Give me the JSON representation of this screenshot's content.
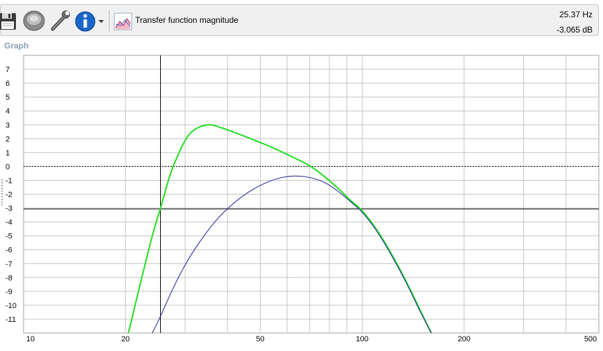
{
  "toolbar": {
    "title": "Transfer function magnitude",
    "buttons": [
      {
        "name": "save-button",
        "icon": "floppy-disk-icon"
      },
      {
        "name": "speaker-button",
        "icon": "speaker-icon"
      },
      {
        "name": "settings-button",
        "icon": "wrench-icon"
      },
      {
        "name": "info-button",
        "icon": "info-icon"
      },
      {
        "name": "info-dropdown-button",
        "icon": "chevron-down-icon"
      },
      {
        "name": "chart-button",
        "icon": "chart-icon"
      }
    ]
  },
  "readout": {
    "frequency": "25.37 Hz",
    "level": "-3.065 dB"
  },
  "panel": {
    "label": "Graph"
  },
  "chart_data": {
    "type": "line",
    "title": "Transfer function magnitude",
    "xscale": "log",
    "xlim": [
      10,
      500
    ],
    "ylim": [
      -12,
      8
    ],
    "xticks": [
      10,
      20,
      50,
      100,
      200,
      500
    ],
    "yticks": [
      7,
      6,
      5,
      4,
      3,
      2,
      1,
      0,
      -1,
      -2,
      -3,
      -4,
      -5,
      -6,
      -7,
      -8,
      -9,
      -10,
      -11
    ],
    "grid": true,
    "reference_lines": [
      {
        "axis": "y",
        "value": 0,
        "style": "dotted"
      },
      {
        "axis": "y",
        "value": -3.065,
        "style": "solid"
      },
      {
        "axis": "x",
        "value": 25.37,
        "style": "solid"
      }
    ],
    "series": [
      {
        "color": "#22dd22",
        "x": [
          20.4,
          22.2,
          24.0,
          25.37,
          27.1,
          28.8,
          30.6,
          32.8,
          35.5,
          38.2,
          42.5,
          48.0,
          55.0,
          62.0,
          70.0,
          78.0,
          85.0,
          92.0,
          100.0,
          110.0,
          122.0,
          135.0,
          148.0,
          160.0
        ],
        "y": [
          -12.0,
          -8.3,
          -5.0,
          -3.0,
          -0.6,
          1.0,
          2.2,
          2.8,
          3.0,
          2.8,
          2.4,
          1.9,
          1.3,
          0.7,
          0.05,
          -0.8,
          -1.6,
          -2.4,
          -3.2,
          -4.5,
          -6.3,
          -8.3,
          -10.3,
          -12.0
        ],
        "linewidth": 2
      },
      {
        "color": "#1a1a9e",
        "x": [
          24.0,
          25.37,
          27.5,
          30.0,
          33.0,
          37.0,
          42.0,
          48.0,
          55.0,
          62.0,
          70.0,
          78.0,
          86.0,
          94.0,
          100.0,
          110.0,
          122.0,
          135.0,
          148.0,
          160.0
        ],
        "y": [
          -12.0,
          -10.8,
          -8.9,
          -7.1,
          -5.5,
          -3.9,
          -2.6,
          -1.6,
          -0.95,
          -0.7,
          -0.8,
          -1.2,
          -1.9,
          -2.7,
          -3.3,
          -4.6,
          -6.4,
          -8.4,
          -10.4,
          -12.0
        ],
        "linewidth": 1
      }
    ]
  }
}
